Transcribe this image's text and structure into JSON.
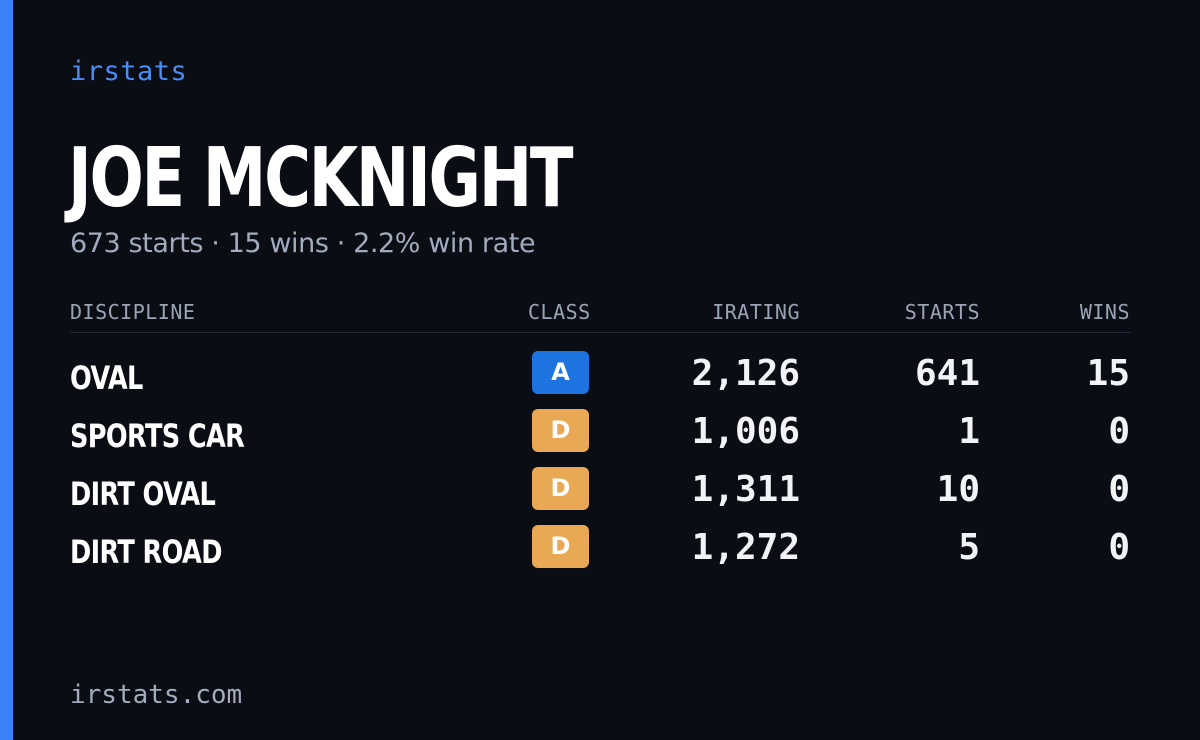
{
  "brand": "irstats",
  "player": {
    "name": "JOE MCKNIGHT",
    "summary": "673 starts · 15 wins · 2.2% win rate"
  },
  "table": {
    "headers": {
      "discipline": "DISCIPLINE",
      "class": "CLASS",
      "irating": "IRATING",
      "starts": "STARTS",
      "wins": "WINS"
    },
    "rows": [
      {
        "discipline": "OVAL",
        "class": "A",
        "class_color": "#1d74e0",
        "irating": "2,126",
        "starts": "641",
        "wins": "15"
      },
      {
        "discipline": "SPORTS CAR",
        "class": "D",
        "class_color": "#e8a854",
        "irating": "1,006",
        "starts": "1",
        "wins": "0"
      },
      {
        "discipline": "DIRT OVAL",
        "class": "D",
        "class_color": "#e8a854",
        "irating": "1,311",
        "starts": "10",
        "wins": "0"
      },
      {
        "discipline": "DIRT ROAD",
        "class": "D",
        "class_color": "#e8a854",
        "irating": "1,272",
        "starts": "5",
        "wins": "0"
      }
    ]
  },
  "footer": "irstats.com",
  "colors": {
    "accent": "#3b82f6",
    "background": "#0a0d14"
  }
}
